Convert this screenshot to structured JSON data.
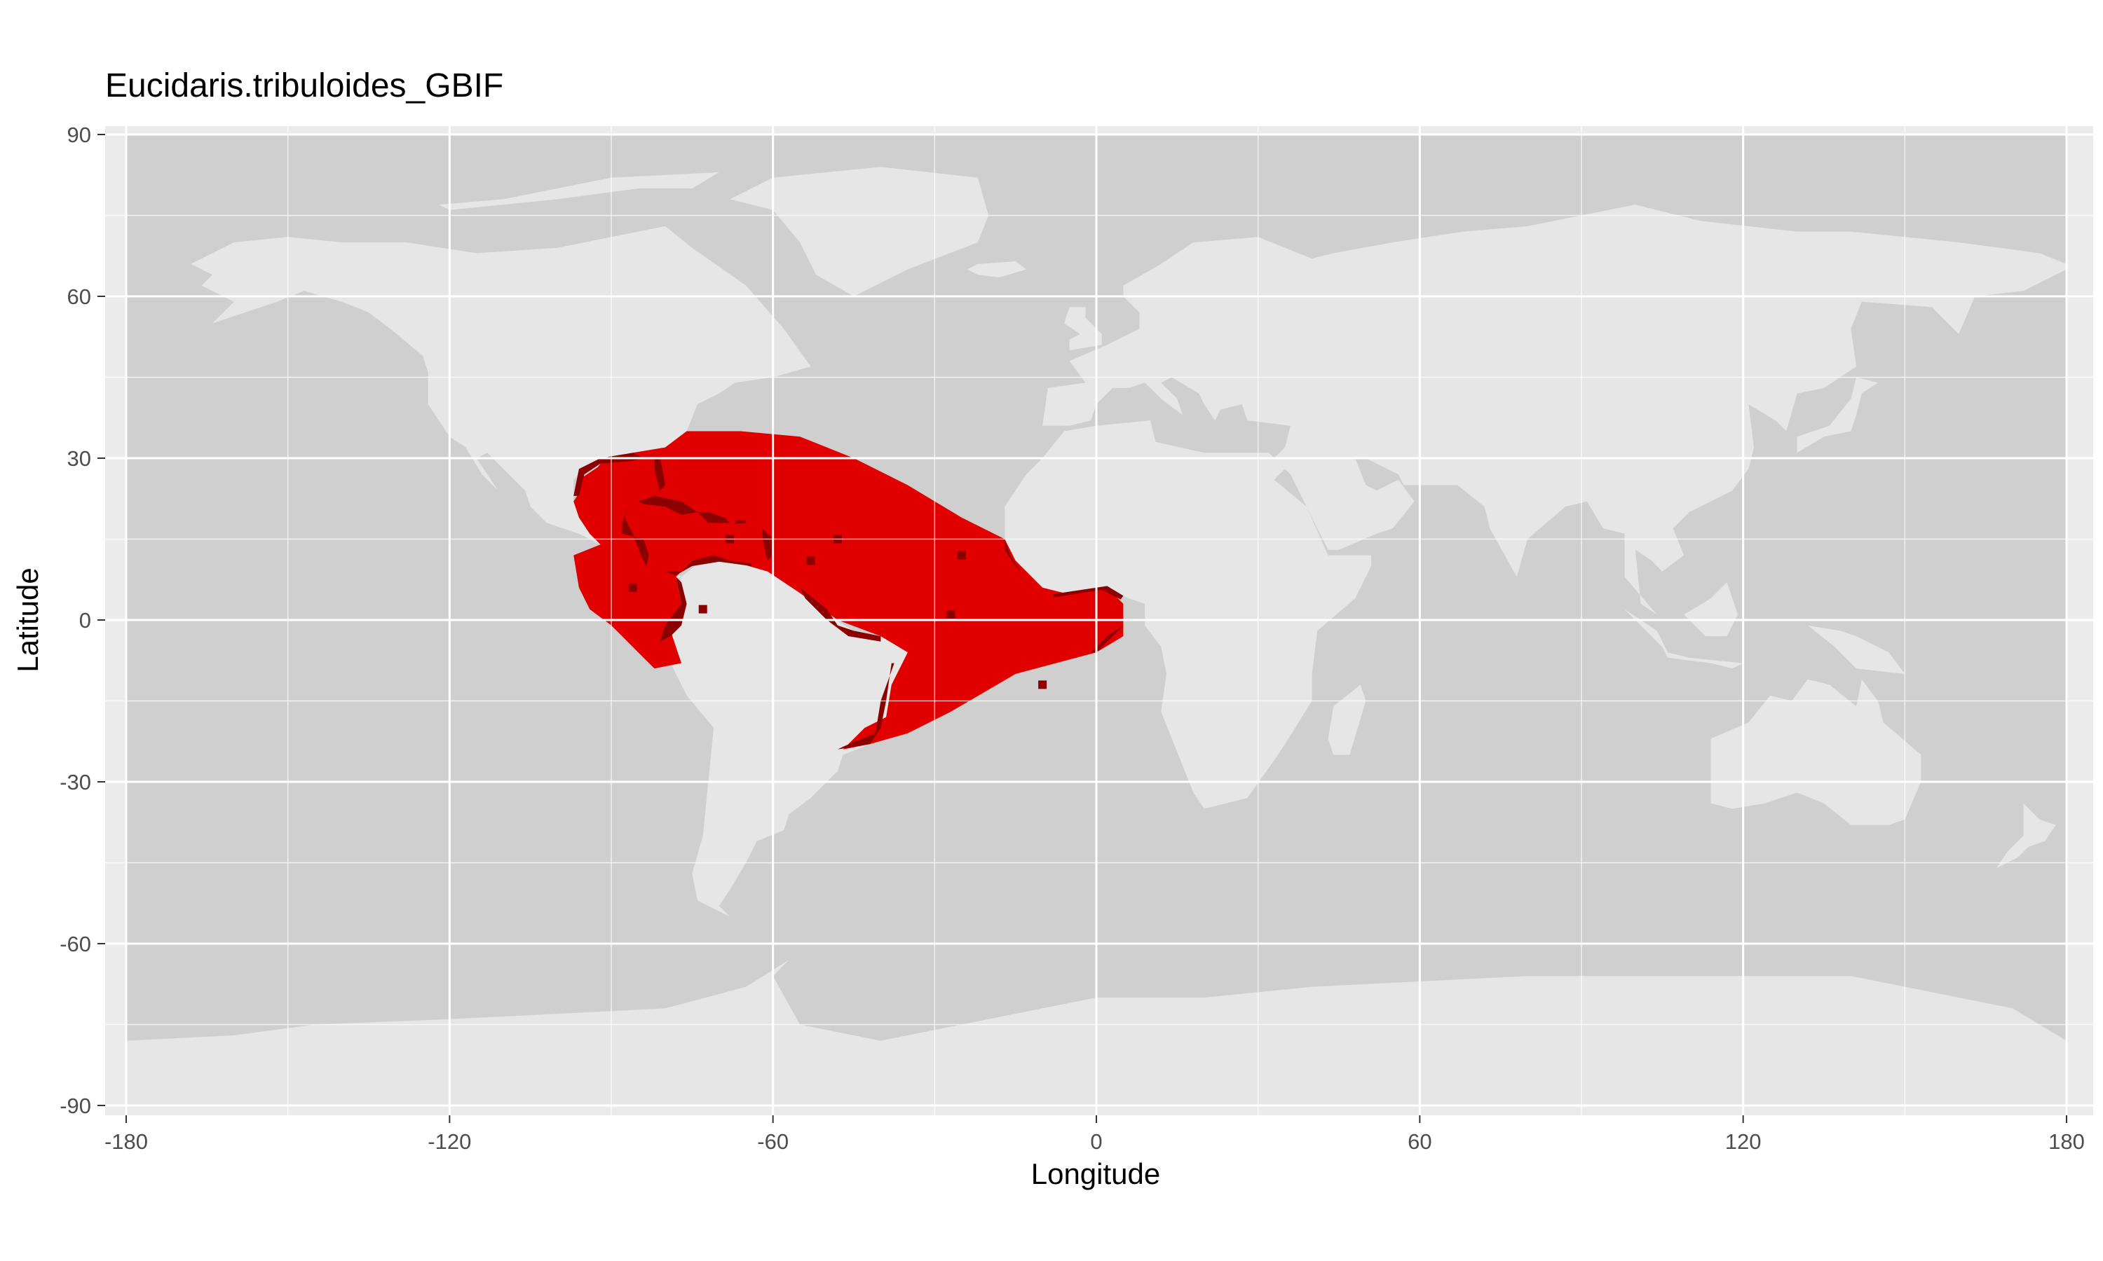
{
  "chart_data": {
    "type": "map",
    "title": "Eucidaris.tribuloides_GBIF",
    "xlabel": "Longitude",
    "ylabel": "Latitude",
    "xlim": [
      -180,
      180
    ],
    "ylim": [
      -90,
      90
    ],
    "x_ticks": [
      -180,
      -120,
      -60,
      0,
      60,
      120,
      180
    ],
    "y_ticks": [
      -90,
      -60,
      -30,
      0,
      30,
      60,
      90
    ],
    "x_tick_labels": [
      "-180",
      "-120",
      "-60",
      "0",
      "60",
      "120",
      "180"
    ],
    "y_tick_labels": [
      "-90",
      "-60",
      "-30",
      "0",
      "30",
      "60",
      "90"
    ],
    "grid": true,
    "legend": "none",
    "colors": {
      "panel_background": "#ebebeb",
      "ocean": "#cfcfcf",
      "land": "#e6e6e6",
      "grid": "#ffffff",
      "predicted_range": "#e00000",
      "occurrence_records": "#8b0000"
    },
    "layers": [
      {
        "name": "predicted range",
        "color_key": "predicted_range",
        "extent": {
          "lon": [
            -97,
            5
          ],
          "lat": [
            -24,
            35
          ]
        }
      },
      {
        "name": "occurrence records",
        "color_key": "occurrence_records",
        "extent": {
          "lon": [
            -97,
            5
          ],
          "lat": [
            -24,
            31
          ]
        }
      }
    ]
  }
}
